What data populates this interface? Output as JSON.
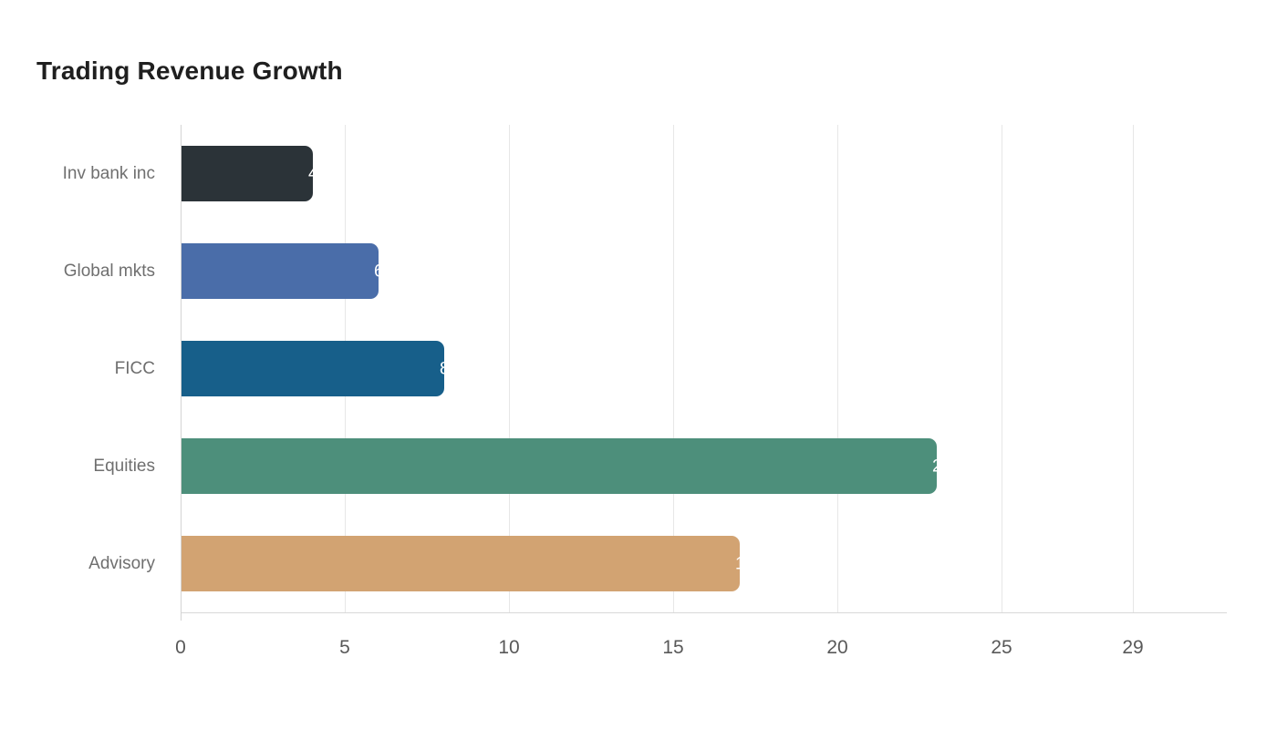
{
  "title": "Trading Revenue Growth",
  "chart_data": {
    "type": "bar",
    "orientation": "horizontal",
    "title": "Trading Revenue Growth",
    "categories": [
      "Inv bank inc",
      "Global mkts",
      "FICC",
      "Equities",
      "Advisory"
    ],
    "values": [
      4,
      6,
      8,
      23,
      17
    ],
    "bar_colors": [
      "#2b3338",
      "#4a6da9",
      "#175f8a",
      "#4d8f7b",
      "#d2a372"
    ],
    "value_label_color": "#ffffff",
    "x_ticks": [
      0,
      5,
      10,
      15,
      20,
      25,
      29
    ],
    "xlim": [
      0,
      29
    ],
    "xlabel": "",
    "ylabel": "",
    "grid": true,
    "legend": false,
    "gridline_orientation": "vertical"
  },
  "colors": {
    "background": "#ffffff",
    "title_text": "#1f1f1f",
    "category_label_text": "#6f6f6f",
    "tick_label_text": "#595959",
    "axis_line": "#d9d9d9",
    "gridline": "#e7e7e7"
  }
}
